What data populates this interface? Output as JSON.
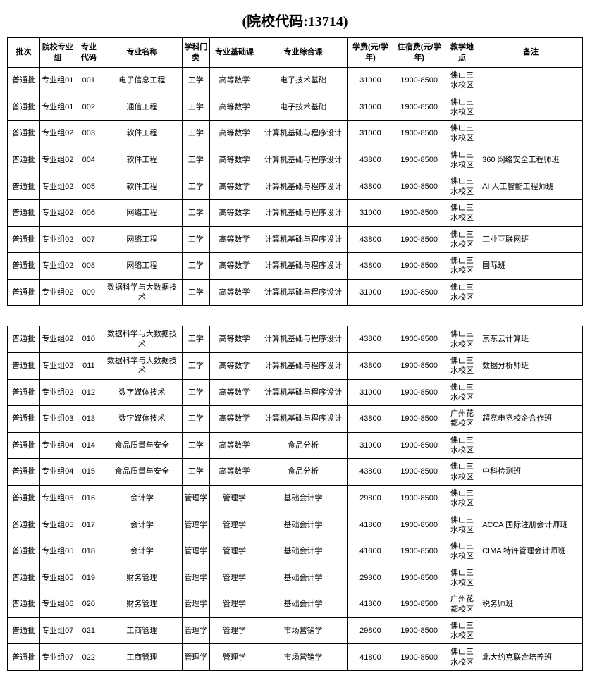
{
  "title": "(院校代码:13714)",
  "headers": [
    "批次",
    "院校专业组",
    "专业代码",
    "专业名称",
    "学科门类",
    "专业基础课",
    "专业综合课",
    "学费(元/学年)",
    "住宿费(元/学年)",
    "教学地点",
    "备注"
  ],
  "rows1": [
    [
      "普通批",
      "专业组01",
      "001",
      "电子信息工程",
      "工学",
      "高等数学",
      "电子技术基础",
      "31000",
      "1900-8500",
      "佛山三水校区",
      ""
    ],
    [
      "普通批",
      "专业组01",
      "002",
      "通信工程",
      "工学",
      "高等数学",
      "电子技术基础",
      "31000",
      "1900-8500",
      "佛山三水校区",
      ""
    ],
    [
      "普通批",
      "专业组02",
      "003",
      "软件工程",
      "工学",
      "高等数学",
      "计算机基础与程序设计",
      "31000",
      "1900-8500",
      "佛山三水校区",
      ""
    ],
    [
      "普通批",
      "专业组02",
      "004",
      "软件工程",
      "工学",
      "高等数学",
      "计算机基础与程序设计",
      "43800",
      "1900-8500",
      "佛山三水校区",
      "360 网络安全工程师班"
    ],
    [
      "普通批",
      "专业组02",
      "005",
      "软件工程",
      "工学",
      "高等数学",
      "计算机基础与程序设计",
      "43800",
      "1900-8500",
      "佛山三水校区",
      "AI 人工智能工程师班"
    ],
    [
      "普通批",
      "专业组02",
      "006",
      "网络工程",
      "工学",
      "高等数学",
      "计算机基础与程序设计",
      "31000",
      "1900-8500",
      "佛山三水校区",
      ""
    ],
    [
      "普通批",
      "专业组02",
      "007",
      "网络工程",
      "工学",
      "高等数学",
      "计算机基础与程序设计",
      "43800",
      "1900-8500",
      "佛山三水校区",
      "工业互联网班"
    ],
    [
      "普通批",
      "专业组02",
      "008",
      "网络工程",
      "工学",
      "高等数学",
      "计算机基础与程序设计",
      "43800",
      "1900-8500",
      "佛山三水校区",
      "国际班"
    ],
    [
      "普通批",
      "专业组02",
      "009",
      "数据科学与大数据技术",
      "工学",
      "高等数学",
      "计算机基础与程序设计",
      "31000",
      "1900-8500",
      "佛山三水校区",
      ""
    ]
  ],
  "rows2": [
    [
      "普通批",
      "专业组02",
      "010",
      "数据科学与大数据技术",
      "工学",
      "高等数学",
      "计算机基础与程序设计",
      "43800",
      "1900-8500",
      "佛山三水校区",
      "京东云计算班"
    ],
    [
      "普通批",
      "专业组02",
      "011",
      "数据科学与大数据技术",
      "工学",
      "高等数学",
      "计算机基础与程序设计",
      "43800",
      "1900-8500",
      "佛山三水校区",
      "数据分析师班"
    ],
    [
      "普通批",
      "专业组02",
      "012",
      "数字媒体技术",
      "工学",
      "高等数学",
      "计算机基础与程序设计",
      "31000",
      "1900-8500",
      "佛山三水校区",
      ""
    ],
    [
      "普通批",
      "专业组03",
      "013",
      "数字媒体技术",
      "工学",
      "高等数学",
      "计算机基础与程序设计",
      "43800",
      "1900-8500",
      "广州花都校区",
      "超竞电竞校企合作班"
    ],
    [
      "普通批",
      "专业组04",
      "014",
      "食品质量与安全",
      "工学",
      "高等数学",
      "食品分析",
      "31000",
      "1900-8500",
      "佛山三水校区",
      ""
    ],
    [
      "普通批",
      "专业组04",
      "015",
      "食品质量与安全",
      "工学",
      "高等数学",
      "食品分析",
      "43800",
      "1900-8500",
      "佛山三水校区",
      "中科检测班"
    ],
    [
      "普通批",
      "专业组05",
      "016",
      "会计学",
      "管理学",
      "管理学",
      "基础会计学",
      "29800",
      "1900-8500",
      "佛山三水校区",
      ""
    ],
    [
      "普通批",
      "专业组05",
      "017",
      "会计学",
      "管理学",
      "管理学",
      "基础会计学",
      "41800",
      "1900-8500",
      "佛山三水校区",
      "ACCA 国际注册会计师班"
    ],
    [
      "普通批",
      "专业组05",
      "018",
      "会计学",
      "管理学",
      "管理学",
      "基础会计学",
      "41800",
      "1900-8500",
      "佛山三水校区",
      "CIMA 特许管理会计师班"
    ],
    [
      "普通批",
      "专业组05",
      "019",
      "财务管理",
      "管理学",
      "管理学",
      "基础会计学",
      "29800",
      "1900-8500",
      "佛山三水校区",
      ""
    ],
    [
      "普通批",
      "专业组06",
      "020",
      "财务管理",
      "管理学",
      "管理学",
      "基础会计学",
      "41800",
      "1900-8500",
      "广州花都校区",
      "税务师班"
    ],
    [
      "普通批",
      "专业组07",
      "021",
      "工商管理",
      "管理学",
      "管理学",
      "市场营销学",
      "29800",
      "1900-8500",
      "佛山三水校区",
      ""
    ],
    [
      "普通批",
      "专业组07",
      "022",
      "工商管理",
      "管理学",
      "管理学",
      "市场营销学",
      "41800",
      "1900-8500",
      "佛山三水校区",
      "北大约克联合培养班"
    ]
  ]
}
